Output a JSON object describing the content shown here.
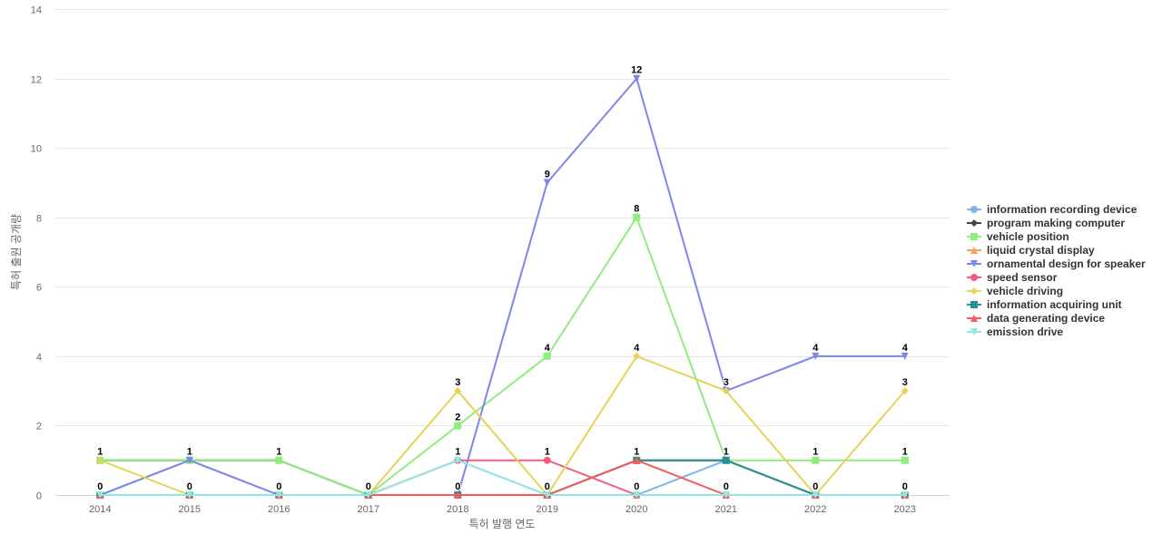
{
  "chart_data": {
    "type": "line",
    "xlabel": "특허 발행 연도",
    "ylabel": "특허 출원 공개량",
    "ylim": [
      0,
      14
    ],
    "yticks": [
      0,
      2,
      4,
      6,
      8,
      10,
      12,
      14
    ],
    "categories": [
      "2014",
      "2015",
      "2016",
      "2017",
      "2018",
      "2019",
      "2020",
      "2021",
      "2022",
      "2023"
    ],
    "grid": "horizontal",
    "legend_position": "right",
    "series": [
      {
        "name": "information recording device",
        "color": "#7cb5ec",
        "marker": "circle",
        "values": [
          0,
          1,
          0,
          0,
          1,
          0,
          0,
          1,
          0,
          0
        ]
      },
      {
        "name": "program making computer",
        "color": "#434348",
        "marker": "diamond",
        "values": [
          1,
          1,
          1,
          0,
          0,
          0,
          1,
          1,
          0,
          0
        ]
      },
      {
        "name": "vehicle position",
        "color": "#90ed7d",
        "marker": "square",
        "values": [
          1,
          1,
          1,
          0,
          2,
          4,
          8,
          1,
          1,
          1
        ]
      },
      {
        "name": "liquid crystal display",
        "color": "#f7a35c",
        "marker": "triangle",
        "values": [
          0,
          0,
          0,
          0,
          0,
          0,
          0,
          0,
          0,
          0
        ]
      },
      {
        "name": "ornamental design for speaker",
        "color": "#8085e9",
        "marker": "triangle-down",
        "values": [
          0,
          1,
          0,
          0,
          0,
          9,
          12,
          3,
          4,
          4
        ]
      },
      {
        "name": "speed sensor",
        "color": "#f15c80",
        "marker": "circle",
        "values": [
          0,
          0,
          0,
          0,
          1,
          1,
          0,
          0,
          0,
          0
        ]
      },
      {
        "name": "vehicle driving",
        "color": "#e4d354",
        "marker": "diamond",
        "values": [
          1,
          0,
          0,
          0,
          3,
          0,
          4,
          3,
          0,
          3
        ]
      },
      {
        "name": "information acquiring unit",
        "color": "#2b908f",
        "marker": "square",
        "values": [
          0,
          0,
          0,
          0,
          0,
          0,
          1,
          1,
          0,
          0
        ]
      },
      {
        "name": "data generating device",
        "color": "#f45b5b",
        "marker": "triangle",
        "values": [
          0,
          0,
          0,
          0,
          0,
          0,
          1,
          0,
          0,
          0
        ]
      },
      {
        "name": "emission drive",
        "color": "#91e8e1",
        "marker": "triangle-down",
        "values": [
          0,
          0,
          0,
          0,
          1,
          0,
          0,
          0,
          0,
          0
        ]
      }
    ],
    "data_labels": [
      {
        "x": "2014",
        "value": 1
      },
      {
        "x": "2014",
        "value": 0
      },
      {
        "x": "2015",
        "value": 1
      },
      {
        "x": "2015",
        "value": 0
      },
      {
        "x": "2016",
        "value": 1
      },
      {
        "x": "2016",
        "value": 0
      },
      {
        "x": "2017",
        "value": 0
      },
      {
        "x": "2018",
        "value": 3
      },
      {
        "x": "2018",
        "value": 2
      },
      {
        "x": "2018",
        "value": 1
      },
      {
        "x": "2018",
        "value": 0
      },
      {
        "x": "2019",
        "value": 9
      },
      {
        "x": "2019",
        "value": 4
      },
      {
        "x": "2019",
        "value": 1
      },
      {
        "x": "2019",
        "value": 0
      },
      {
        "x": "2020",
        "value": 12
      },
      {
        "x": "2020",
        "value": 8
      },
      {
        "x": "2020",
        "value": 4
      },
      {
        "x": "2020",
        "value": 1
      },
      {
        "x": "2020",
        "value": 0
      },
      {
        "x": "2021",
        "value": 3
      },
      {
        "x": "2021",
        "value": 1
      },
      {
        "x": "2021",
        "value": 0
      },
      {
        "x": "2022",
        "value": 4
      },
      {
        "x": "2022",
        "value": 1
      },
      {
        "x": "2022",
        "value": 0
      },
      {
        "x": "2023",
        "value": 4
      },
      {
        "x": "2023",
        "value": 3
      },
      {
        "x": "2023",
        "value": 1
      },
      {
        "x": "2023",
        "value": 0
      }
    ]
  }
}
